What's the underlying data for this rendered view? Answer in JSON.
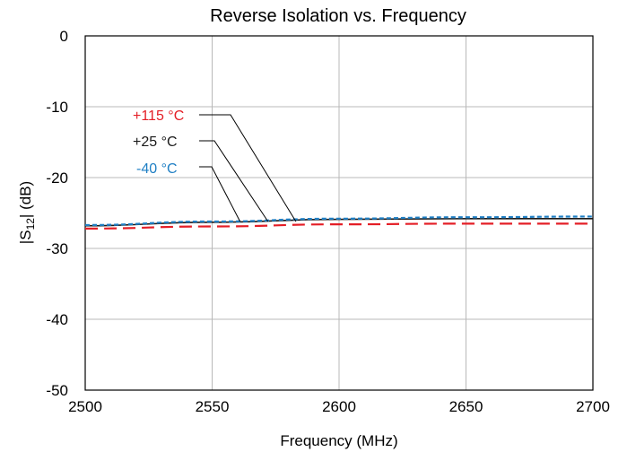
{
  "chart_data": {
    "type": "line",
    "title": "Reverse Isolation vs. Frequency",
    "xlabel": "Frequency (MHz)",
    "ylabel_prefix": "|S",
    "ylabel_sub": "12",
    "ylabel_suffix": "| (dB)",
    "xlim": [
      2500,
      2700
    ],
    "ylim": [
      -50,
      0
    ],
    "xticks": [
      2500,
      2550,
      2600,
      2650,
      2700
    ],
    "yticks": [
      0,
      -10,
      -20,
      -30,
      -40,
      -50
    ],
    "grid": true,
    "x": [
      2500,
      2550,
      2600,
      2650,
      2700
    ],
    "series": [
      {
        "name": "+115 °C",
        "color": "#e41e26",
        "dash": "long-dash",
        "values": [
          -27.2,
          -26.9,
          -26.6,
          -26.5,
          -26.5
        ]
      },
      {
        "name": "+25 °C",
        "color": "#1a1a1a",
        "dash": "solid",
        "values": [
          -26.8,
          -26.3,
          -25.9,
          -25.8,
          -25.8
        ]
      },
      {
        "name": "-40 °C",
        "color": "#1f7fc4",
        "dash": "short-dash",
        "values": [
          -26.7,
          -26.2,
          -25.8,
          -25.6,
          -25.5
        ]
      }
    ],
    "annotations": [
      {
        "text": "+115 °C",
        "color": "#e41e26",
        "points_to_x": 2583
      },
      {
        "text": "+25 °C",
        "color": "#1a1a1a",
        "points_to_x": 2572
      },
      {
        "text": "-40 °C",
        "color": "#1f7fc4",
        "points_to_x": 2561
      }
    ]
  }
}
